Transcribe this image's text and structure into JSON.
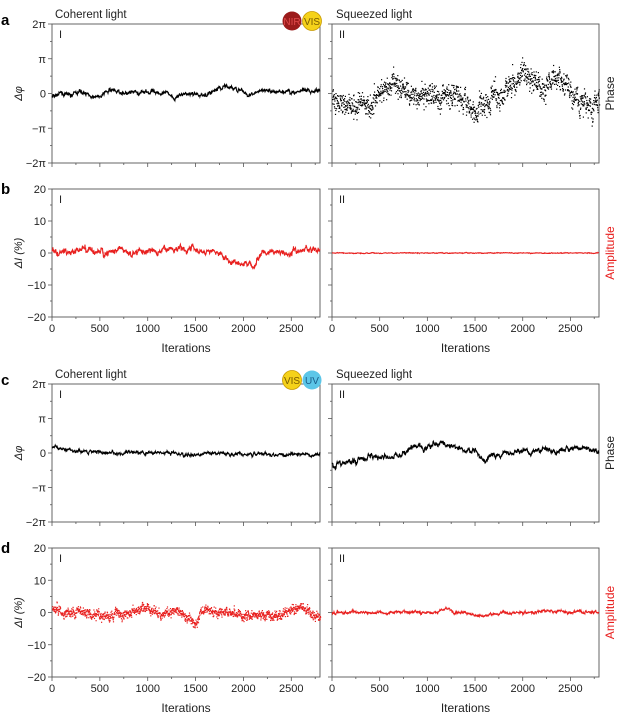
{
  "chart_data": [
    {
      "panel": "a",
      "type": "line",
      "title": "Coherent light",
      "roman": "I",
      "ylabel": "Δφ",
      "unit": "pi",
      "ylim": [
        -2,
        2
      ],
      "yticks": [
        "2π",
        "π",
        "0",
        "−π",
        "−2π"
      ],
      "xlim": [
        0,
        2800
      ],
      "color": "#000000",
      "spread": 0.12,
      "style": "line",
      "x_step": 100,
      "values": [
        -0.1,
        0,
        -0.05,
        0.05,
        -0.05,
        -0.1,
        0.1,
        0.05,
        0,
        0,
        0.05,
        0.05,
        0,
        -0.1,
        0,
        0,
        -0.05,
        0.05,
        0.2,
        0.15,
        0.05,
        -0.05,
        0.1,
        0.05,
        0.05,
        0.05,
        0.05,
        0.05,
        0.1
      ]
    },
    {
      "panel": "a",
      "type": "scatter",
      "title": "Squeezed light",
      "roman": "II",
      "side_label": "Phase",
      "unit": "pi",
      "ylim": [
        -2,
        2
      ],
      "xlim": [
        0,
        2800
      ],
      "color": "#000000",
      "spread": 0.7,
      "style": "dots",
      "x_step": 100,
      "values": [
        -0.1,
        -0.3,
        -0.2,
        -0.3,
        -0.3,
        0.1,
        0.2,
        0.2,
        0.1,
        0,
        0,
        -0.2,
        -0.1,
        0,
        -0.3,
        -0.5,
        -0.3,
        0,
        0.1,
        0.4,
        0.5,
        0.4,
        0.2,
        0.6,
        0.3,
        0,
        -0.2,
        -0.3,
        -0.1
      ]
    },
    {
      "panel": "b",
      "type": "line",
      "roman": "I",
      "ylabel": "ΔI (%)",
      "ylim": [
        -20,
        20
      ],
      "yticks": [
        "20",
        "10",
        "0",
        "−10",
        "−20"
      ],
      "xlim": [
        0,
        2800
      ],
      "xticks": [
        "0",
        "500",
        "1000",
        "1500",
        "2000",
        "2500"
      ],
      "xlabel": "Iterations",
      "color": "#e8201f",
      "spread": 2,
      "style": "line",
      "x_step": 100,
      "values": [
        0,
        0,
        0,
        1,
        1,
        0,
        0,
        1,
        0,
        0,
        1,
        0,
        1,
        2,
        1,
        1,
        0,
        1,
        -1,
        -3,
        -3,
        -4,
        0,
        0,
        0,
        0,
        1,
        1,
        1
      ]
    },
    {
      "panel": "b",
      "type": "line",
      "roman": "II",
      "side_label": "Amplitude",
      "ylim": [
        -20,
        20
      ],
      "xlim": [
        0,
        2800
      ],
      "xticks": [
        "0",
        "500",
        "1000",
        "1500",
        "2000",
        "2500"
      ],
      "xlabel": "Iterations",
      "color": "#e8201f",
      "spread": 0.25,
      "style": "line",
      "x_step": 100,
      "values": [
        0,
        0,
        0,
        0,
        0,
        0,
        0,
        0,
        0,
        0,
        0,
        0,
        0,
        0,
        0,
        0,
        0,
        0,
        0,
        0,
        0,
        0,
        0,
        0,
        0,
        0,
        0,
        0,
        0
      ]
    },
    {
      "panel": "c",
      "type": "line",
      "title": "Coherent light",
      "roman": "I",
      "ylabel": "Δφ",
      "unit": "pi",
      "ylim": [
        -2,
        2
      ],
      "yticks": [
        "2π",
        "π",
        "0",
        "−π",
        "−2π"
      ],
      "xlim": [
        0,
        2800
      ],
      "color": "#000000",
      "spread": 0.1,
      "style": "line",
      "x_step": 100,
      "values": [
        0.2,
        0.15,
        0.1,
        0.05,
        0.05,
        0.05,
        0,
        0,
        0.05,
        0,
        0,
        0,
        0,
        0,
        -0.05,
        -0.05,
        0,
        0,
        -0.05,
        -0.05,
        0,
        -0.05,
        -0.05,
        -0.05,
        -0.05,
        -0.05,
        -0.05,
        -0.05,
        -0.05
      ]
    },
    {
      "panel": "c",
      "type": "line",
      "title": "Squeezed light",
      "roman": "II",
      "side_label": "Phase",
      "unit": "pi",
      "ylim": [
        -2,
        2
      ],
      "xlim": [
        0,
        2800
      ],
      "color": "#000000",
      "spread": 0.16,
      "style": "line",
      "x_step": 100,
      "values": [
        -0.3,
        -0.3,
        -0.25,
        -0.15,
        -0.1,
        -0.1,
        -0.1,
        -0.05,
        0.1,
        0.15,
        0.2,
        0.3,
        0.25,
        0.15,
        0.1,
        0.05,
        -0.2,
        -0.1,
        0,
        0,
        0.05,
        0.05,
        0.1,
        0.1,
        0.05,
        0.1,
        0.15,
        0.1,
        0.05
      ]
    },
    {
      "panel": "d",
      "type": "line",
      "roman": "I",
      "ylabel": "ΔI (%)",
      "ylim": [
        -20,
        20
      ],
      "yticks": [
        "20",
        "10",
        "0",
        "−10",
        "−20"
      ],
      "xlim": [
        0,
        2800
      ],
      "xticks": [
        "0",
        "500",
        "1000",
        "1500",
        "2000",
        "2500"
      ],
      "xlabel": "Iterations",
      "color": "#e8201f",
      "spread": 3,
      "style": "dots",
      "x_step": 100,
      "values": [
        2,
        0,
        0,
        1,
        -1,
        -1,
        -1,
        0,
        0,
        1,
        2,
        0,
        -1,
        1,
        -1,
        -3,
        2,
        0,
        0,
        0,
        -1,
        0,
        -1,
        -1,
        0,
        1,
        2,
        0,
        -2
      ]
    },
    {
      "panel": "d",
      "type": "line",
      "roman": "II",
      "side_label": "Amplitude",
      "ylim": [
        -20,
        20
      ],
      "xlim": [
        0,
        2800
      ],
      "xticks": [
        "0",
        "500",
        "1000",
        "1500",
        "2000",
        "2500"
      ],
      "xlabel": "Iterations",
      "color": "#e8201f",
      "spread": 0.9,
      "style": "line",
      "x_step": 100,
      "values": [
        0,
        0,
        0,
        0,
        0,
        0,
        0,
        0,
        0,
        0,
        0,
        0,
        1,
        0,
        0,
        -1,
        -1,
        -0.5,
        0,
        0,
        0,
        0,
        0.5,
        0.5,
        0.5,
        0,
        0.5,
        0,
        0
      ]
    }
  ],
  "panel_letters": [
    "a",
    "b",
    "c",
    "d"
  ],
  "badges": {
    "a": [
      {
        "label": "NIR",
        "color": "#9b1b1b",
        "text_color": "#e04a4a"
      },
      {
        "label": "VIS",
        "color": "#f5d21a",
        "text_color": "#7a5b00"
      }
    ],
    "c": [
      {
        "label": "VIS",
        "color": "#f5d21a",
        "text_color": "#7a5b00"
      },
      {
        "label": "UV",
        "color": "#5cc6e8",
        "text_color": "#1a5d8a"
      }
    ]
  },
  "colors": {
    "phase": "#222222",
    "amplitude": "#e8201f"
  }
}
